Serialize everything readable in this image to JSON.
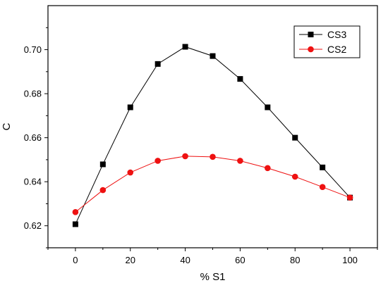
{
  "chart_data": {
    "type": "line",
    "xlabel": "% S1",
    "ylabel": "C",
    "xlim": [
      -10,
      110
    ],
    "ylim": [
      0.61,
      0.72
    ],
    "x_ticks": [
      0,
      20,
      40,
      60,
      80,
      100
    ],
    "x_tick_labels": [
      "0",
      "20",
      "40",
      "60",
      "80",
      "100"
    ],
    "y_ticks": [
      0.62,
      0.64,
      0.66,
      0.68,
      0.7
    ],
    "y_tick_labels": [
      "0.62",
      "0.64",
      "0.66",
      "0.68",
      "0.70"
    ],
    "x": [
      0,
      10,
      20,
      30,
      40,
      50,
      60,
      70,
      80,
      90,
      100
    ],
    "series": [
      {
        "name": "CS3",
        "color": "#000000",
        "marker": "square",
        "values": [
          0.6207,
          0.6479,
          0.6738,
          0.6935,
          0.7013,
          0.6971,
          0.6867,
          0.6738,
          0.66,
          0.6465,
          0.6328
        ]
      },
      {
        "name": "CS2",
        "color": "#ee1111",
        "marker": "circle",
        "values": [
          0.6262,
          0.6362,
          0.6442,
          0.6495,
          0.6516,
          0.6513,
          0.6495,
          0.6462,
          0.6423,
          0.6376,
          0.6328
        ]
      }
    ],
    "legend_position": "top-right",
    "grid": false
  }
}
